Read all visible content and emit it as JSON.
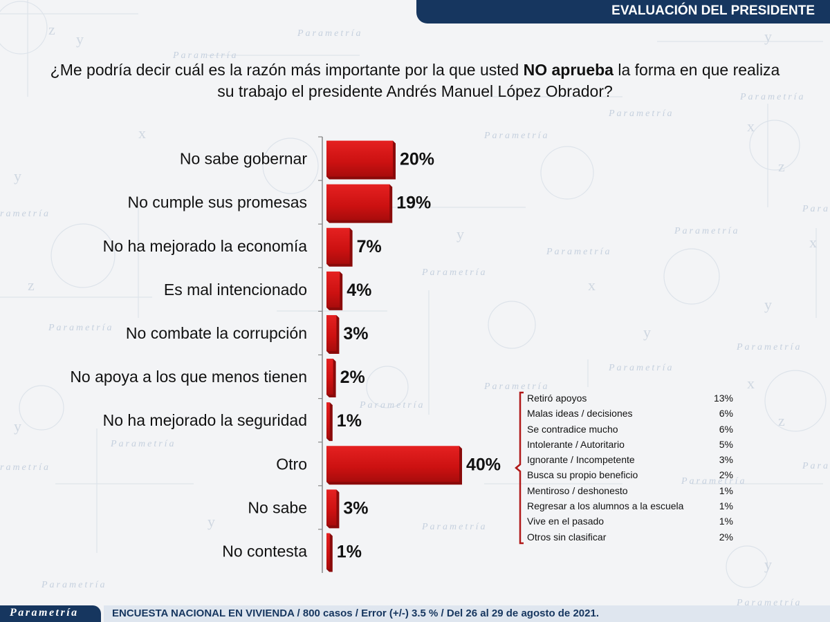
{
  "header": {
    "title": "EVALUACIÓN DEL PRESIDENTE"
  },
  "question": {
    "before": "¿Me podría decir cuál es la razón más importante por la que usted ",
    "emphasis": "NO aprueba",
    "after_line1": " la forma en que realiza",
    "line2": "su trabajo el presidente Andrés Manuel López Obrador?"
  },
  "chart_data": {
    "type": "bar",
    "orientation": "horizontal",
    "unit": "%",
    "categories": [
      "No sabe gobernar",
      "No cumple sus promesas",
      "No ha mejorado la economía",
      "Es mal intencionado",
      "No combate la corrupción",
      "No apoya a los que menos tienen",
      "No ha mejorado la seguridad",
      "Otro",
      "No sabe",
      "No contesta"
    ],
    "values": [
      20,
      19,
      7,
      4,
      3,
      2,
      1,
      40,
      3,
      1
    ],
    "data_labels": [
      "20%",
      "19%",
      "7%",
      "4%",
      "3%",
      "2%",
      "1%",
      "40%",
      "3%",
      "1%"
    ],
    "bar_color": "#cc1111",
    "xlim": [
      0,
      40
    ],
    "grid": false
  },
  "breakdown": {
    "parent": "Otro",
    "bracket_color": "#b01818",
    "items": [
      {
        "label": "Retiró apoyos",
        "value": "13%"
      },
      {
        "label": "Malas ideas / decisiones",
        "value": "6%"
      },
      {
        "label": "Se contradice mucho",
        "value": "6%"
      },
      {
        "label": "Intolerante / Autoritario",
        "value": "5%"
      },
      {
        "label": "Ignorante / Incompetente",
        "value": "3%"
      },
      {
        "label": "Busca su propio beneficio",
        "value": "2%"
      },
      {
        "label": "Mentiroso / deshonesto",
        "value": "1%"
      },
      {
        "label": "Regresar a los alumnos a la escuela",
        "value": "1%"
      },
      {
        "label": "Vive en el pasado",
        "value": "1%"
      },
      {
        "label": "Otros sin clasificar",
        "value": "2%"
      }
    ]
  },
  "footer": {
    "logo": "Parametría",
    "note": "ENCUESTA NACIONAL EN VIVIENDA / 800 casos / Error (+/-) 3.5 % / Del 26 al 29 de agosto de 2021."
  },
  "colors": {
    "navy": "#16365f",
    "bar_red": "#cc1111"
  }
}
